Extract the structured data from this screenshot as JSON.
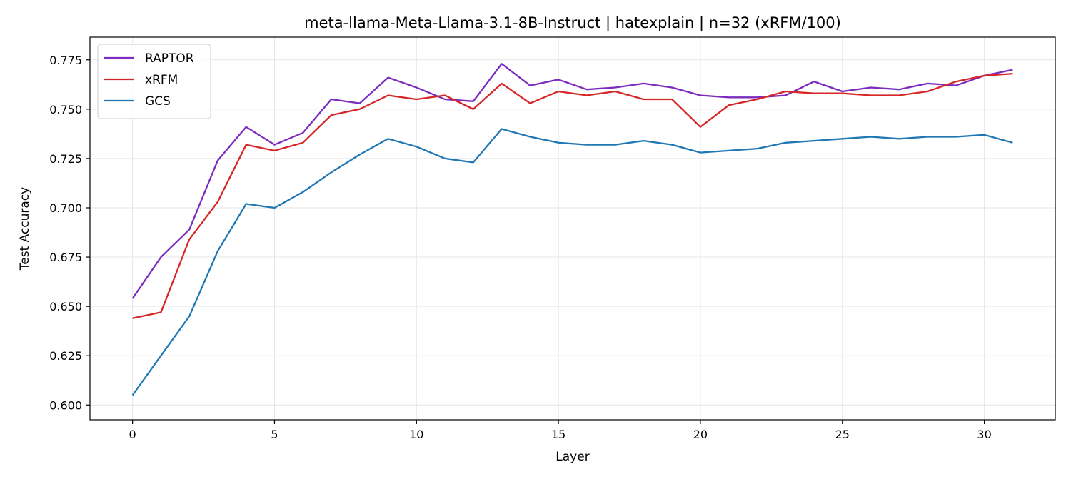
{
  "chart_data": {
    "type": "line",
    "title": "meta-llama-Meta-Llama-3.1-8B-Instruct | hatexplain | n=32 (xRFM/100)",
    "xlabel": "Layer",
    "ylabel": "Test Accuracy",
    "xlim": [
      -1.5,
      32.5
    ],
    "ylim": [
      0.5925,
      0.7865
    ],
    "xticks": [
      0,
      5,
      10,
      15,
      20,
      25,
      30
    ],
    "xtick_labels": [
      "0",
      "5",
      "10",
      "15",
      "20",
      "25",
      "30"
    ],
    "yticks": [
      0.6,
      0.625,
      0.65,
      0.675,
      0.7,
      0.725,
      0.75,
      0.775
    ],
    "ytick_labels": [
      "0.600",
      "0.625",
      "0.650",
      "0.675",
      "0.700",
      "0.725",
      "0.750",
      "0.775"
    ],
    "grid": true,
    "legend_position": "top-left",
    "x": [
      0,
      1,
      2,
      3,
      4,
      5,
      6,
      7,
      8,
      9,
      10,
      11,
      12,
      13,
      14,
      15,
      16,
      17,
      18,
      19,
      20,
      21,
      22,
      23,
      24,
      25,
      26,
      27,
      28,
      29,
      30,
      31
    ],
    "series": [
      {
        "name": "RAPTOR",
        "color": "#7b2cbf",
        "values": [
          0.654,
          0.675,
          0.689,
          0.724,
          0.741,
          0.732,
          0.738,
          0.755,
          0.753,
          0.766,
          0.761,
          0.755,
          0.754,
          0.773,
          0.762,
          0.765,
          0.76,
          0.761,
          0.763,
          0.761,
          0.757,
          0.756,
          0.756,
          0.757,
          0.764,
          0.759,
          0.761,
          0.76,
          0.763,
          0.762,
          0.767,
          0.77
        ]
      },
      {
        "name": "xRFM",
        "color": "#d62728",
        "values": [
          0.644,
          0.647,
          0.684,
          0.703,
          0.732,
          0.729,
          0.733,
          0.747,
          0.75,
          0.757,
          0.755,
          0.757,
          0.75,
          0.763,
          0.753,
          0.759,
          0.757,
          0.759,
          0.755,
          0.755,
          0.741,
          0.752,
          0.755,
          0.759,
          0.758,
          0.758,
          0.757,
          0.757,
          0.759,
          0.764,
          0.767,
          0.768
        ]
      },
      {
        "name": "GCS",
        "color": "#1f77b4",
        "values": [
          0.605,
          0.625,
          0.645,
          0.678,
          0.702,
          0.7,
          0.708,
          0.718,
          0.727,
          0.735,
          0.731,
          0.725,
          0.723,
          0.74,
          0.736,
          0.733,
          0.732,
          0.732,
          0.734,
          0.732,
          0.728,
          0.729,
          0.73,
          0.733,
          0.734,
          0.735,
          0.736,
          0.735,
          0.736,
          0.736,
          0.737,
          0.733
        ]
      }
    ]
  }
}
